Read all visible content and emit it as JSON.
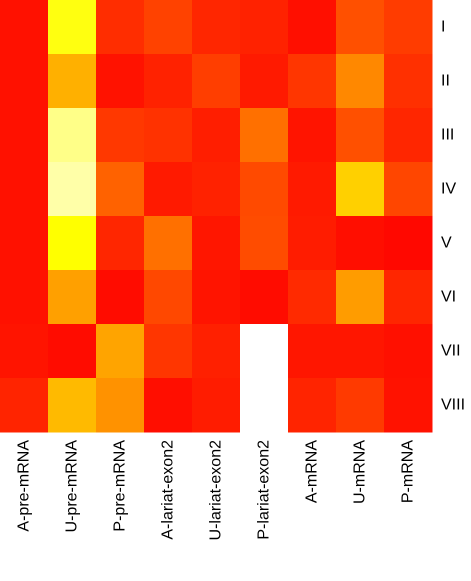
{
  "chart_data": {
    "type": "heatmap",
    "title": "",
    "xlabel": "",
    "ylabel": "",
    "colormap": "hot (red → orange → yellow → white)",
    "missing_color": "#ffffff",
    "legend": "none",
    "grid": false,
    "x_categories": [
      "A-pre-mRNA",
      "U-pre-mRNA",
      "P-pre-mRNA",
      "A-lariat-exon2",
      "U-lariat-exon2",
      "P-lariat-exon2",
      "A-mRNA",
      "U-mRNA",
      "P-mRNA"
    ],
    "y_categories": [
      "I",
      "II",
      "III",
      "IV",
      "V",
      "VI",
      "VII",
      "VIII"
    ],
    "cell_colors": [
      [
        "#ff1100",
        "#ffff10",
        "#ff2d00",
        "#ff4200",
        "#ff2600",
        "#ff2200",
        "#ff0f00",
        "#ff5000",
        "#ff3c00"
      ],
      [
        "#ff1100",
        "#ffb000",
        "#ff1200",
        "#ff2200",
        "#ff3e00",
        "#ff1a00",
        "#ff3600",
        "#ff8800",
        "#ff3000"
      ],
      [
        "#ff1100",
        "#ffff88",
        "#ff3800",
        "#ff3200",
        "#ff1e00",
        "#ff7000",
        "#ff1400",
        "#ff5000",
        "#ff2600"
      ],
      [
        "#ff1100",
        "#ffffa8",
        "#ff6200",
        "#ff1a00",
        "#ff2200",
        "#ff4a00",
        "#ff1a00",
        "#ffd000",
        "#ff4600"
      ],
      [
        "#ff1100",
        "#ffff00",
        "#ff2600",
        "#ff7000",
        "#ff1600",
        "#ff4c00",
        "#ff1c00",
        "#ff0e00",
        "#ff0800"
      ],
      [
        "#ff1100",
        "#ffa000",
        "#ff0c00",
        "#ff4800",
        "#ff1400",
        "#ff0c00",
        "#ff2a00",
        "#ff9c00",
        "#ff2600"
      ],
      [
        "#ff1400",
        "#ff0c00",
        "#ffa400",
        "#ff3600",
        "#ff2000",
        null,
        "#ff1600",
        "#ff1600",
        "#ff1000"
      ],
      [
        "#ff2400",
        "#ffba00",
        "#ff9200",
        "#ff0e00",
        "#ff1c00",
        null,
        "#ff2400",
        "#ff3a00",
        "#ff1200"
      ]
    ]
  }
}
